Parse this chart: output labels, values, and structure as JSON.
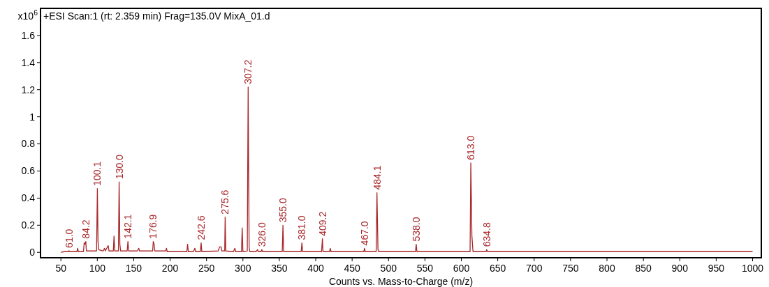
{
  "chart_data": {
    "type": "line",
    "title": "+ESI Scan:1 (rt: 2.359 min) Frag=135.0V MixA_01.d",
    "xlabel": "Counts vs. Mass-to-Charge (m/z)",
    "ylabel": "x10$^{6}$",
    "xlim": [
      22,
      1012
    ],
    "xticks": [
      50,
      100,
      150,
      200,
      250,
      300,
      350,
      400,
      450,
      500,
      550,
      600,
      650,
      700,
      750,
      800,
      850,
      900,
      950,
      1000
    ],
    "ylim": [
      -0.04,
      1.8
    ],
    "yticks": [
      0,
      0.2,
      0.4,
      0.6,
      0.8,
      1,
      1.2,
      1.4,
      1.6
    ],
    "grid": false,
    "marker": "none",
    "line_style": "solid",
    "series": [
      {
        "color": "#a8282b",
        "x": [
          50,
          55,
          60,
          61,
          62,
          72,
          73,
          74,
          81,
          82,
          83,
          84.2,
          85,
          99,
          100.1,
          101,
          102,
          108,
          110,
          111,
          115,
          116,
          122,
          123,
          124,
          129,
          130,
          131,
          132,
          141,
          142.1,
          143,
          155,
          157,
          158,
          176,
          176.9,
          178,
          179,
          194,
          195,
          196,
          223,
          224,
          225,
          232,
          234,
          235,
          241.5,
          242.6,
          243.5,
          266,
          268,
          270,
          271,
          275,
          275.6,
          276.5,
          287,
          289,
          290,
          298,
          299,
          300,
          306,
          307.2,
          308.5,
          309.5,
          318,
          320,
          321,
          325,
          326,
          327,
          354,
          355,
          356,
          380,
          381,
          382,
          408,
          409.2,
          410,
          419,
          420,
          421,
          466,
          467,
          468,
          483,
          484.1,
          485.5,
          486.5,
          537,
          538,
          539,
          612,
          613,
          614.5,
          616,
          634,
          634.8,
          636,
          700,
          1000
        ],
        "values": [
          0,
          0.005,
          0.005,
          0.012,
          0.005,
          0.005,
          0.03,
          0.005,
          0.005,
          0.07,
          0.06,
          0.08,
          0.01,
          0.01,
          0.47,
          0.08,
          0.02,
          0.01,
          0.03,
          0.01,
          0.05,
          0.01,
          0.01,
          0.12,
          0.01,
          0.01,
          0.52,
          0.06,
          0.01,
          0.01,
          0.08,
          0.01,
          0.01,
          0.03,
          0.01,
          0.01,
          0.08,
          0.06,
          0.01,
          0.01,
          0.03,
          0.005,
          0.005,
          0.06,
          0.005,
          0.005,
          0.03,
          0.005,
          0.005,
          0.07,
          0.005,
          0.01,
          0.04,
          0.04,
          0.01,
          0.01,
          0.26,
          0.01,
          0.005,
          0.03,
          0.005,
          0.005,
          0.18,
          0.005,
          0.01,
          1.22,
          0.04,
          0.005,
          0.005,
          0.02,
          0.005,
          0.005,
          0.02,
          0.005,
          0.005,
          0.2,
          0.005,
          0.005,
          0.07,
          0.005,
          0.005,
          0.1,
          0.005,
          0.005,
          0.03,
          0.005,
          0.005,
          0.03,
          0.005,
          0.005,
          0.44,
          0.02,
          0.005,
          0.005,
          0.06,
          0.005,
          0.005,
          0.66,
          0.12,
          0.005,
          0.005,
          0.02,
          0.005,
          0.005,
          0.005
        ]
      }
    ],
    "annotations": [
      {
        "text": "61.0",
        "x": 61,
        "y": 0.012
      },
      {
        "text": "84.2",
        "x": 84.2,
        "y": 0.08
      },
      {
        "text": "100.1",
        "x": 100.1,
        "y": 0.47
      },
      {
        "text": "130.0",
        "x": 130,
        "y": 0.52
      },
      {
        "text": "142.1",
        "x": 142.1,
        "y": 0.08
      },
      {
        "text": "176.9",
        "x": 176.9,
        "y": 0.08
      },
      {
        "text": "242.6",
        "x": 242.6,
        "y": 0.07
      },
      {
        "text": "275.6",
        "x": 275.6,
        "y": 0.26
      },
      {
        "text": "307.2",
        "x": 307.2,
        "y": 1.22
      },
      {
        "text": "326.0",
        "x": 326,
        "y": 0.02
      },
      {
        "text": "355.0",
        "x": 355,
        "y": 0.2
      },
      {
        "text": "381.0",
        "x": 381,
        "y": 0.07
      },
      {
        "text": "409.2",
        "x": 409.2,
        "y": 0.1
      },
      {
        "text": "467.0",
        "x": 467,
        "y": 0.03
      },
      {
        "text": "484.1",
        "x": 484.1,
        "y": 0.44
      },
      {
        "text": "538.0",
        "x": 538,
        "y": 0.06
      },
      {
        "text": "613.0",
        "x": 613,
        "y": 0.66
      },
      {
        "text": "634.8",
        "x": 634.8,
        "y": 0.02
      }
    ]
  }
}
